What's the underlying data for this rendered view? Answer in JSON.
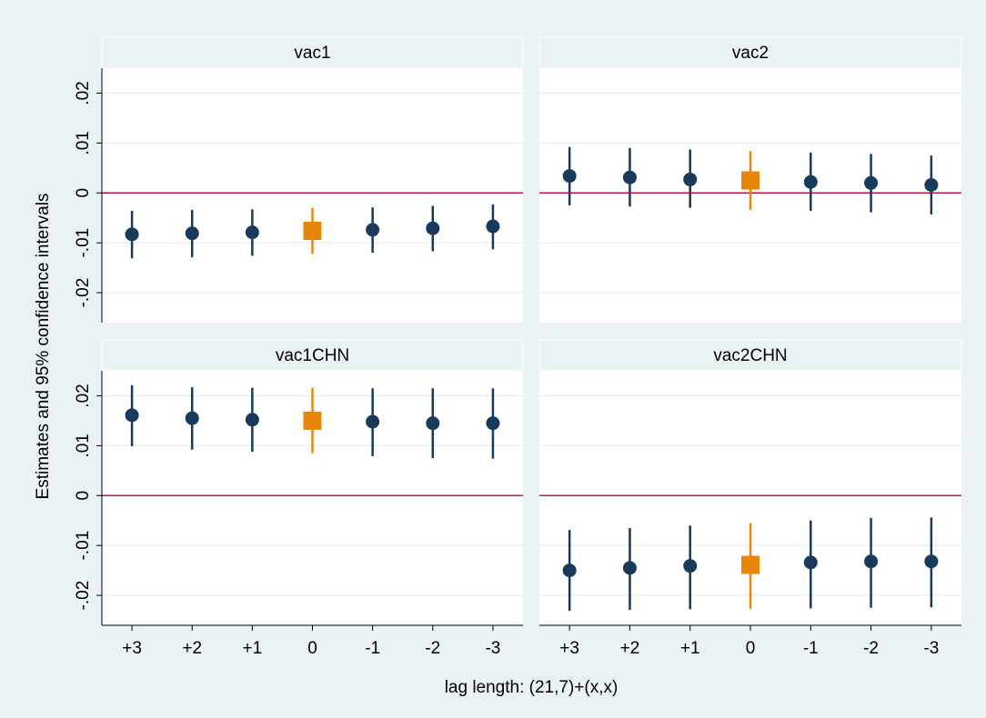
{
  "chart_data": {
    "type": "facet-errorbar",
    "ylabel": "Estimates and 95% confidence intervals",
    "xlabel": "lag length: (21,7)+(x,x)",
    "categories": [
      "+3",
      "+2",
      "+1",
      "0",
      "-1",
      "-2",
      "-3"
    ],
    "ylim": [
      -0.026,
      0.025
    ],
    "yticks": [
      {
        "value": 0.02,
        "label": ".02"
      },
      {
        "value": 0.01,
        "label": ".01"
      },
      0,
      {
        "value": -0.01,
        "label": "-.01"
      },
      {
        "value": -0.02,
        "label": "-.02"
      }
    ],
    "grid": true,
    "zero_line_color": "#c0143c",
    "colors": [
      "#1a3a5c",
      "#1a3a5c",
      "#1a3a5c",
      "#e8860a",
      "#1a3a5c",
      "#1a3a5c",
      "#1a3a5c"
    ],
    "markers": [
      "circle",
      "circle",
      "circle",
      "square",
      "circle",
      "circle",
      "circle"
    ],
    "panels": [
      {
        "title": "vac1",
        "values": [
          -0.0083,
          -0.0081,
          -0.0079,
          -0.0076,
          -0.0074,
          -0.0071,
          -0.0067
        ],
        "ci_low": [
          -0.0131,
          -0.0129,
          -0.0126,
          -0.0122,
          -0.012,
          -0.0117,
          -0.0113
        ],
        "ci_high": [
          -0.0036,
          -0.0034,
          -0.0033,
          -0.003,
          -0.0029,
          -0.0026,
          -0.0023
        ]
      },
      {
        "title": "vac2",
        "values": [
          0.0034,
          0.0031,
          0.0027,
          0.0025,
          0.0022,
          0.002,
          0.0016
        ],
        "ci_low": [
          -0.0025,
          -0.0027,
          -0.003,
          -0.0034,
          -0.0036,
          -0.0039,
          -0.0043
        ],
        "ci_high": [
          0.0092,
          0.009,
          0.0087,
          0.0084,
          0.0081,
          0.0078,
          0.0075
        ]
      },
      {
        "title": "vac1CHN",
        "values": [
          0.0161,
          0.0155,
          0.0152,
          0.015,
          0.0148,
          0.0145,
          0.0145
        ],
        "ci_low": [
          0.0099,
          0.0092,
          0.0088,
          0.0085,
          0.0079,
          0.0075,
          0.0074
        ],
        "ci_high": [
          0.0221,
          0.0217,
          0.0216,
          0.0216,
          0.0215,
          0.0215,
          0.0215
        ]
      },
      {
        "title": "vac2CHN",
        "values": [
          -0.015,
          -0.0145,
          -0.0141,
          -0.0139,
          -0.0134,
          -0.0132,
          -0.0132
        ],
        "ci_low": [
          -0.0231,
          -0.0229,
          -0.0228,
          -0.0227,
          -0.0226,
          -0.0225,
          -0.0224
        ],
        "ci_high": [
          -0.0069,
          -0.0065,
          -0.006,
          -0.0055,
          -0.005,
          -0.0045,
          -0.0044
        ]
      }
    ]
  }
}
